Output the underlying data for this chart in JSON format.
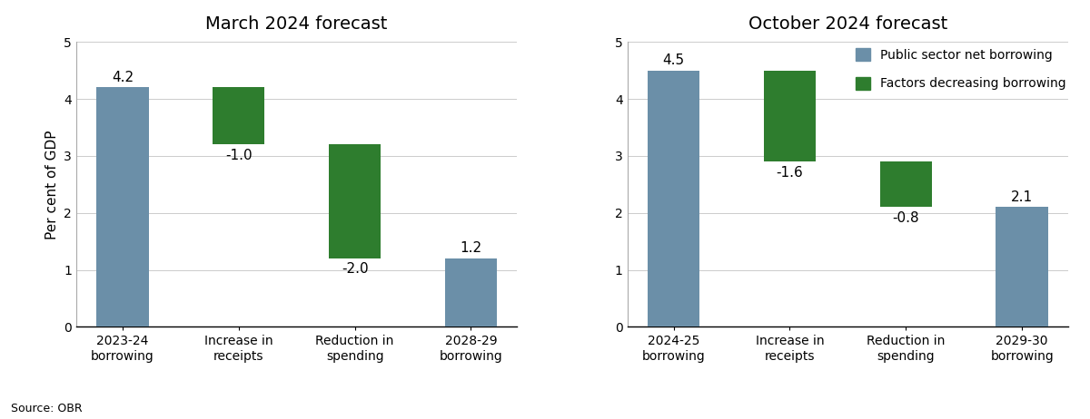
{
  "chart1": {
    "title": "March 2024 forecast",
    "categories": [
      "2023-24\nborrowing",
      "Increase in\nreceipts",
      "Reduction in\nspending",
      "2028-29\nborrowing"
    ],
    "values": [
      4.2,
      -1.0,
      -2.0,
      1.2
    ],
    "labels": [
      "4.2",
      "-1.0",
      "-2.0",
      "1.2"
    ],
    "bar_types": [
      "gray",
      "green",
      "green",
      "gray"
    ],
    "bottoms": [
      0,
      3.2,
      1.2,
      0
    ]
  },
  "chart2": {
    "title": "October 2024 forecast",
    "categories": [
      "2024-25\nborrowing",
      "Increase in\nreceipts",
      "Reduction in\nspending",
      "2029-30\nborrowing"
    ],
    "values": [
      4.5,
      -1.6,
      -0.8,
      2.1
    ],
    "labels": [
      "4.5",
      "-1.6",
      "-0.8",
      "2.1"
    ],
    "bar_types": [
      "gray",
      "green",
      "green",
      "gray"
    ],
    "bottoms": [
      0,
      2.9,
      2.1,
      0
    ]
  },
  "ylabel": "Per cent of GDP",
  "ylim": [
    0,
    5
  ],
  "yticks": [
    0,
    1,
    2,
    3,
    4,
    5
  ],
  "gray_color": "#6b8fa8",
  "green_color": "#2e7d2e",
  "source_text": "Source: OBR",
  "legend_gray_label": "Public sector net borrowing",
  "legend_green_label": "Factors decreasing borrowing",
  "bar_width": 0.45,
  "label_fontsize": 11,
  "title_fontsize": 14,
  "axis_fontsize": 10,
  "ylabel_fontsize": 11
}
